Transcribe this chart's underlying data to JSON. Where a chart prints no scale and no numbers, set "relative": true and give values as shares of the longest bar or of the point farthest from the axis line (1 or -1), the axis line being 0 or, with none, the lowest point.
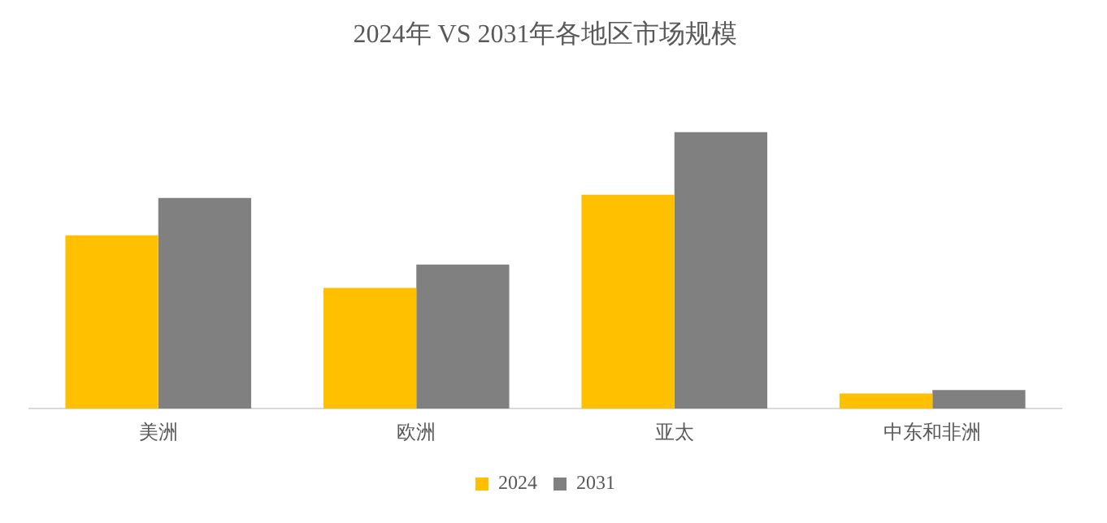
{
  "chart_data": {
    "type": "bar",
    "title": "2024年 VS 2031年各地区市场规模",
    "categories": [
      "美洲",
      "欧洲",
      "亚太",
      "中东和非洲"
    ],
    "relative": true,
    "legend": "bottom",
    "grid": false,
    "series": [
      {
        "name": "2024",
        "color": "#ffc000",
        "values": [
          0.626,
          0.436,
          0.773,
          0.055
        ]
      },
      {
        "name": "2031",
        "color": "#808080",
        "values": [
          0.761,
          0.521,
          1,
          0.067
        ]
      }
    ]
  }
}
